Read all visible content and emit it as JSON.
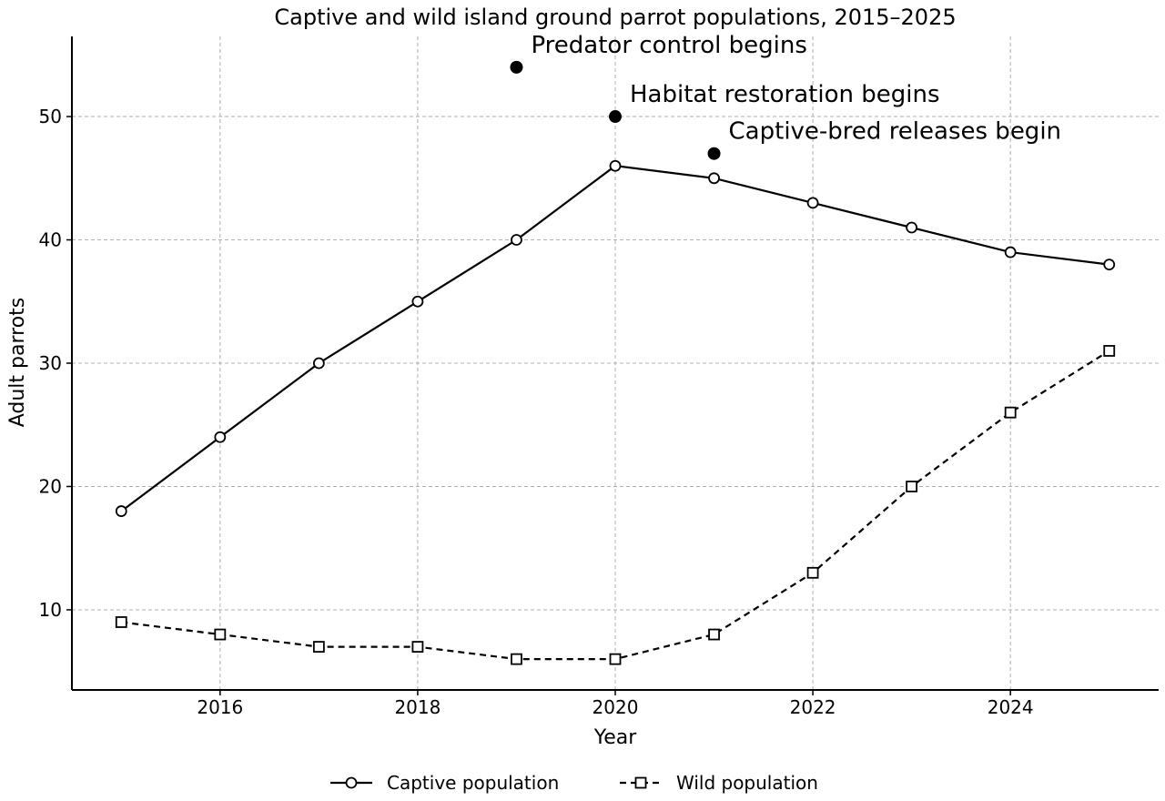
{
  "chart_data": {
    "type": "line",
    "title": "Captive and wild island ground parrot populations, 2015–2025",
    "xlabel": "Year",
    "ylabel": "Adult parrots",
    "xlim": [
      2014.5,
      2025.5
    ],
    "ylim": [
      3.5,
      56.5
    ],
    "xticks": [
      2016,
      2018,
      2020,
      2022,
      2024
    ],
    "yticks": [
      10,
      20,
      30,
      40,
      50
    ],
    "grid": true,
    "legend_position": "bottom-center",
    "x": [
      2015,
      2016,
      2017,
      2018,
      2019,
      2020,
      2021,
      2022,
      2023,
      2024,
      2025
    ],
    "series": [
      {
        "name": "Captive population",
        "values": [
          18,
          24,
          30,
          35,
          40,
          46,
          45,
          43,
          41,
          39,
          38
        ],
        "line_style": "solid",
        "marker": "circle",
        "color": "#000000"
      },
      {
        "name": "Wild population",
        "values": [
          9,
          8,
          7,
          7,
          6,
          6,
          8,
          13,
          20,
          26,
          31
        ],
        "line_style": "dashed",
        "marker": "square",
        "color": "#000000"
      }
    ],
    "annotations": [
      {
        "x": 2019,
        "y": 54,
        "text": "Predator control begins"
      },
      {
        "x": 2020,
        "y": 50,
        "text": "Habitat restoration begins"
      },
      {
        "x": 2021,
        "y": 47,
        "text": "Captive-bred releases begin"
      }
    ]
  }
}
